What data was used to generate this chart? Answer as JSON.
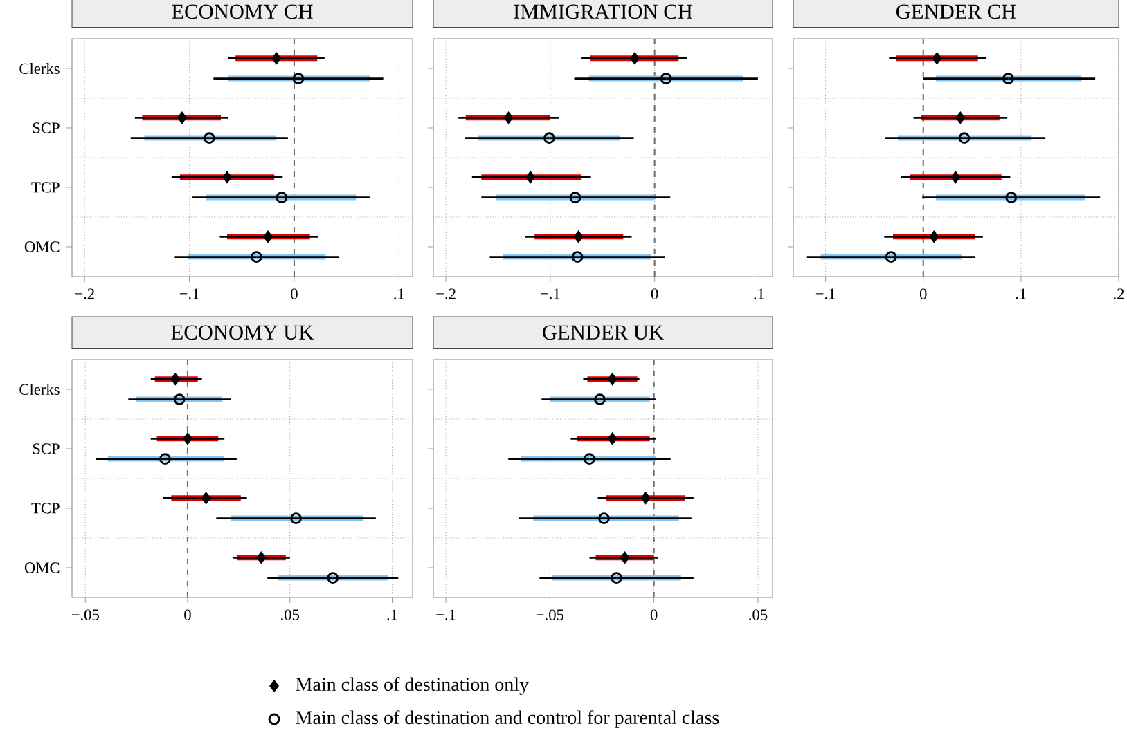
{
  "chart_data": [
    {
      "type": "scatter",
      "orientation": "horizontal",
      "title": "ECONOMY CH",
      "categories": [
        "Clerks",
        "SCP",
        "TCP",
        "OMC"
      ],
      "xlim": [
        -0.212,
        0.113
      ],
      "xticks": [
        {
          "value": -0.2,
          "label": "−.2"
        },
        {
          "value": -0.1,
          "label": "−.1"
        },
        0,
        {
          "value": 0.1,
          "label": ".1"
        }
      ],
      "grid": true,
      "legend": "bottom",
      "ref_lines": [
        {
          "axis": "x",
          "value": 0,
          "color": "#707070",
          "line_style": "dashed"
        }
      ],
      "series": [
        {
          "type": "bar",
          "color": "#e00000",
          "base": [
            -0.056,
            -0.145,
            -0.109,
            -0.064
          ],
          "values": [
            0.078,
            0.075,
            0.09,
            0.079
          ]
        },
        {
          "type": "bar",
          "color": "#87c3ea",
          "base": [
            -0.063,
            -0.143,
            -0.084,
            -0.101
          ],
          "values": [
            0.135,
            0.126,
            0.143,
            0.131
          ]
        },
        {
          "name": "Main class of destination only",
          "color": "#000000",
          "marker": "diamond",
          "values": [
            -0.017,
            -0.107,
            -0.064,
            -0.025
          ],
          "errors": [
            [
              -0.063,
              0.029
            ],
            [
              -0.152,
              -0.063
            ],
            [
              -0.117,
              -0.011
            ],
            [
              -0.071,
              0.023
            ]
          ]
        },
        {
          "name": "Main class of destination and control for parental class",
          "color": "#000000",
          "marker": "circle",
          "values": [
            0.004,
            -0.081,
            -0.012,
            -0.036
          ],
          "errors": [
            [
              -0.077,
              0.085
            ],
            [
              -0.156,
              -0.006
            ],
            [
              -0.097,
              0.072
            ],
            [
              -0.114,
              0.043
            ]
          ]
        }
      ]
    },
    {
      "type": "scatter",
      "orientation": "horizontal",
      "title": "IMMIGRATION CH",
      "categories": [
        null,
        null,
        null,
        null
      ],
      "tick_labels": "x",
      "xlim": [
        -0.212,
        0.113
      ],
      "xticks": [
        {
          "value": -0.2,
          "label": "−.2"
        },
        {
          "value": -0.1,
          "label": "−.1"
        },
        0,
        {
          "value": 0.1,
          "label": ".1"
        }
      ],
      "grid": true,
      "ref_lines": [
        {
          "axis": "x",
          "value": 0,
          "color": "#707070",
          "line_style": "dashed"
        }
      ],
      "series": [
        {
          "type": "bar",
          "color": "#e00000",
          "base": [
            -0.062,
            -0.181,
            -0.166,
            -0.115
          ],
          "values": [
            0.085,
            0.081,
            0.096,
            0.085
          ]
        },
        {
          "type": "bar",
          "color": "#87c3ea",
          "base": [
            -0.063,
            -0.169,
            -0.152,
            -0.145
          ],
          "values": [
            0.148,
            0.136,
            0.152,
            0.142
          ]
        },
        {
          "color": "#000000",
          "marker": "diamond",
          "values": [
            -0.019,
            -0.14,
            -0.119,
            -0.073
          ],
          "errors": [
            [
              -0.07,
              0.031
            ],
            [
              -0.188,
              -0.092
            ],
            [
              -0.175,
              -0.061
            ],
            [
              -0.124,
              -0.022
            ]
          ]
        },
        {
          "color": "#000000",
          "marker": "circle",
          "values": [
            0.011,
            -0.101,
            -0.076,
            -0.074
          ],
          "errors": [
            [
              -0.077,
              0.099
            ],
            [
              -0.182,
              -0.02
            ],
            [
              -0.166,
              0.015
            ],
            [
              -0.158,
              0.01
            ]
          ]
        }
      ]
    },
    {
      "type": "scatter",
      "orientation": "horizontal",
      "title": "GENDER CH",
      "categories": [
        null,
        null,
        null,
        null
      ],
      "tick_labels": "x",
      "xlim": [
        -0.133,
        0.2
      ],
      "xticks": [
        {
          "value": -0.1,
          "label": "−.1"
        },
        0,
        {
          "value": 0.1,
          "label": ".1"
        },
        {
          "value": 0.2,
          "label": ".2"
        }
      ],
      "grid": true,
      "ref_lines": [
        {
          "axis": "x",
          "value": 0,
          "color": "#707070",
          "line_style": "dashed"
        }
      ],
      "series": [
        {
          "type": "bar",
          "color": "#e00000",
          "base": [
            -0.028,
            -0.002,
            -0.014,
            -0.031
          ],
          "values": [
            0.084,
            0.08,
            0.094,
            0.084
          ]
        },
        {
          "type": "bar",
          "color": "#87c3ea",
          "base": [
            0.013,
            -0.026,
            0.013,
            -0.105
          ],
          "values": [
            0.149,
            0.137,
            0.153,
            0.144
          ]
        },
        {
          "color": "#000000",
          "marker": "diamond",
          "values": [
            0.014,
            0.038,
            0.033,
            0.011
          ],
          "errors": [
            [
              -0.035,
              0.064
            ],
            [
              -0.01,
              0.086
            ],
            [
              -0.023,
              0.089
            ],
            [
              -0.04,
              0.061
            ]
          ]
        },
        {
          "color": "#000000",
          "marker": "circle",
          "values": [
            0.087,
            0.042,
            0.09,
            -0.033
          ],
          "errors": [
            [
              0.0,
              0.176
            ],
            [
              -0.039,
              0.125
            ],
            [
              -0.001,
              0.181
            ],
            [
              -0.119,
              0.053
            ]
          ]
        }
      ]
    },
    {
      "type": "scatter",
      "orientation": "horizontal",
      "title": "ECONOMY UK",
      "categories": [
        "Clerks",
        "SCP",
        "TCP",
        "OMC"
      ],
      "xlim": [
        -0.0565,
        0.11
      ],
      "xticks": [
        {
          "value": -0.05,
          "label": "−.05"
        },
        0,
        {
          "value": 0.05,
          "label": ".05"
        },
        {
          "value": 0.1,
          "label": ".1"
        }
      ],
      "grid": true,
      "ref_lines": [
        {
          "axis": "x",
          "value": 0,
          "color": "#707070",
          "line_style": "dashed"
        }
      ],
      "series": [
        {
          "type": "bar",
          "color": "#e00000",
          "base": [
            -0.016,
            -0.015,
            -0.008,
            0.024
          ],
          "values": [
            0.021,
            0.03,
            0.034,
            0.024
          ]
        },
        {
          "type": "bar",
          "color": "#87c3ea",
          "base": [
            -0.025,
            -0.039,
            0.021,
            0.044
          ],
          "values": [
            0.042,
            0.057,
            0.065,
            0.054
          ]
        },
        {
          "color": "#000000",
          "marker": "diamond",
          "values": [
            -0.006,
            0.0,
            0.009,
            0.036
          ],
          "errors": [
            [
              -0.018,
              0.007
            ],
            [
              -0.018,
              0.018
            ],
            [
              -0.012,
              0.029
            ],
            [
              0.022,
              0.05
            ]
          ]
        },
        {
          "color": "#000000",
          "marker": "circle",
          "values": [
            -0.004,
            -0.011,
            0.053,
            0.071
          ],
          "errors": [
            [
              -0.029,
              0.021
            ],
            [
              -0.045,
              0.024
            ],
            [
              0.014,
              0.092
            ],
            [
              0.039,
              0.103
            ]
          ]
        }
      ]
    },
    {
      "type": "scatter",
      "orientation": "horizontal",
      "title": "GENDER UK",
      "categories": [
        null,
        null,
        null,
        null
      ],
      "tick_labels": "x",
      "xlim": [
        -0.106,
        0.057
      ],
      "xticks": [
        {
          "value": -0.1,
          "label": "−.1"
        },
        {
          "value": -0.05,
          "label": "−.05"
        },
        0,
        {
          "value": 0.05,
          "label": ".05"
        }
      ],
      "grid": true,
      "ref_lines": [
        {
          "axis": "x",
          "value": 0,
          "color": "#707070",
          "line_style": "dashed"
        }
      ],
      "series": [
        {
          "type": "bar",
          "color": "#e00000",
          "base": [
            -0.032,
            -0.037,
            -0.023,
            -0.028
          ],
          "values": [
            0.024,
            0.035,
            0.038,
            0.028
          ]
        },
        {
          "type": "bar",
          "color": "#87c3ea",
          "base": [
            -0.05,
            -0.064,
            -0.058,
            -0.049
          ],
          "values": [
            0.048,
            0.065,
            0.07,
            0.062
          ]
        },
        {
          "color": "#000000",
          "marker": "diamond",
          "values": [
            -0.02,
            -0.02,
            -0.004,
            -0.014
          ],
          "errors": [
            [
              -0.034,
              -0.007
            ],
            [
              -0.04,
              0.001
            ],
            [
              -0.027,
              0.019
            ],
            [
              -0.031,
              0.002
            ]
          ]
        },
        {
          "color": "#000000",
          "marker": "circle",
          "values": [
            -0.026,
            -0.031,
            -0.024,
            -0.018
          ],
          "errors": [
            [
              -0.054,
              0.001
            ],
            [
              -0.07,
              0.008
            ],
            [
              -0.065,
              0.018
            ],
            [
              -0.055,
              0.019
            ]
          ]
        }
      ]
    }
  ]
}
